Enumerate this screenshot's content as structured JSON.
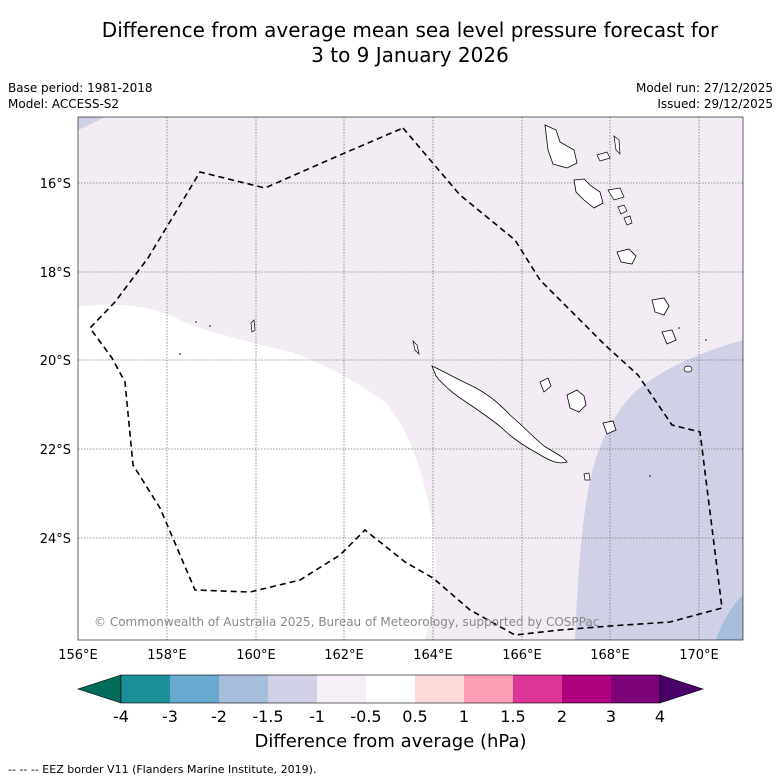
{
  "header": {
    "title_line1": "Difference from average mean sea level pressure forecast for",
    "title_line2": "3 to 9 January 2026",
    "base_period": "Base period: 1981-2018",
    "model": "Model: ACCESS-S2",
    "model_run": "Model run: 27/12/2025",
    "issued": "Issued: 29/12/2025"
  },
  "map": {
    "lat_labels": [
      "16°S",
      "18°S",
      "20°S",
      "22°S",
      "24°S"
    ],
    "lon_labels": [
      "156°E",
      "158°E",
      "160°E",
      "162°E",
      "164°E",
      "166°E",
      "168°E",
      "170°E"
    ],
    "copyright": "© Commonwealth of Australia 2025, Bureau of Meteorology, supported by COSPPac",
    "colors": {
      "near_neutral_pos": "#f3ecf5",
      "neutral": "#ffffff",
      "neg_1_5": "#d0d1e6",
      "neg_2": "#a6bddb",
      "land_outline": "#000000"
    }
  },
  "colorbar": {
    "labels": [
      "-4",
      "-3",
      "-2",
      "-1.5",
      "-1",
      "-0.5",
      "0.5",
      "1",
      "1.5",
      "2",
      "3",
      "4"
    ],
    "colors": [
      "#016c59",
      "#1c9099",
      "#67a9cf",
      "#a6bddb",
      "#d0d1e6",
      "#f6eff7",
      "#ffffff",
      "#fddbdb",
      "#fa9fb5",
      "#dd3497",
      "#ae017e",
      "#7a0177",
      "#49006a"
    ],
    "title": "Difference from average (hPa)"
  },
  "footer": {
    "legend_text": "--  --  -- EEZ border V11 (Flanders Marine Institute, 2019)."
  }
}
